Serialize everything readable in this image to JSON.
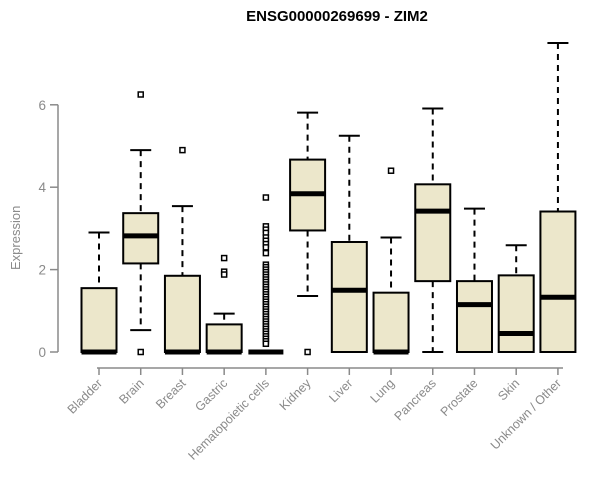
{
  "header": {
    "title": "ENSG00000269699 - ZIM2"
  },
  "chart_data": {
    "type": "boxplot",
    "title": "ENSG00000269699 - ZIM2",
    "xlabel": "",
    "ylabel": "Expression",
    "ylim": [
      0,
      6
    ],
    "yticks": [
      0,
      2,
      4,
      6
    ],
    "grid": false,
    "legend": "none",
    "categories": [
      "Bladder",
      "Brain",
      "Breast",
      "Gastric",
      "Hematopoietic cells",
      "Kidney",
      "Liver",
      "Lung",
      "Pancreas",
      "Prostate",
      "Skin",
      "Unknown / Other"
    ],
    "series": [
      {
        "name": "Bladder",
        "whisker_low": 0,
        "q1": 0,
        "median": 0,
        "q3": 1.55,
        "whisker_high": 2.9,
        "outliers": []
      },
      {
        "name": "Brain",
        "whisker_low": 0.53,
        "q1": 2.15,
        "median": 2.82,
        "q3": 3.37,
        "whisker_high": 4.9,
        "outliers": [
          6.25,
          0
        ]
      },
      {
        "name": "Breast",
        "whisker_low": 0,
        "q1": 0,
        "median": 0,
        "q3": 1.85,
        "whisker_high": 3.54,
        "outliers": [
          4.9
        ]
      },
      {
        "name": "Gastric",
        "whisker_low": 0,
        "q1": 0,
        "median": 0,
        "q3": 0.67,
        "whisker_high": 0.93,
        "outliers": [
          2.28,
          1.95,
          1.88
        ]
      },
      {
        "name": "Hematopoietic cells",
        "whisker_low": 0,
        "q1": 0,
        "median": 0,
        "q3": 0,
        "whisker_high": 0,
        "outliers": [
          3.75,
          3.05,
          2.97,
          2.89,
          2.78,
          2.7,
          2.62,
          2.54,
          2.4,
          2.12,
          2.06,
          2.0,
          1.94,
          1.88,
          1.82,
          1.76,
          1.7,
          1.64,
          1.58,
          1.52,
          1.46,
          1.4,
          1.34,
          1.28,
          1.22,
          1.16,
          1.1,
          1.04,
          0.98,
          0.92,
          0.86,
          0.8,
          0.74,
          0.68,
          0.62,
          0.56,
          0.5,
          0.44,
          0.38,
          0.32,
          0.26,
          0.2
        ]
      },
      {
        "name": "Kidney",
        "whisker_low": 1.36,
        "q1": 2.95,
        "median": 3.84,
        "q3": 4.67,
        "whisker_high": 5.81,
        "outliers": [
          0
        ]
      },
      {
        "name": "Liver",
        "whisker_low": 0,
        "q1": 0,
        "median": 1.5,
        "q3": 2.67,
        "whisker_high": 5.25,
        "outliers": []
      },
      {
        "name": "Lung",
        "whisker_low": 0,
        "q1": 0,
        "median": 0,
        "q3": 1.44,
        "whisker_high": 2.78,
        "outliers": [
          4.4
        ]
      },
      {
        "name": "Pancreas",
        "whisker_low": 0,
        "q1": 1.72,
        "median": 3.42,
        "q3": 4.07,
        "whisker_high": 5.91,
        "outliers": []
      },
      {
        "name": "Prostate",
        "whisker_low": 0,
        "q1": 0,
        "median": 1.15,
        "q3": 1.72,
        "whisker_high": 3.48,
        "outliers": []
      },
      {
        "name": "Skin",
        "whisker_low": 0,
        "q1": 0,
        "median": 0.45,
        "q3": 1.86,
        "whisker_high": 2.59,
        "outliers": []
      },
      {
        "name": "Unknown / Other",
        "whisker_low": 0,
        "q1": 0,
        "median": 1.33,
        "q3": 3.41,
        "whisker_high": 7.5,
        "outliers": []
      }
    ],
    "colors": {
      "box_fill": "#ECE7CB",
      "box_border": "#000000",
      "median": "#000000",
      "axis": "#8a8a8a",
      "tick_label": "#8a8a8a",
      "title": "#000000",
      "background": "#FFFFFF"
    }
  }
}
